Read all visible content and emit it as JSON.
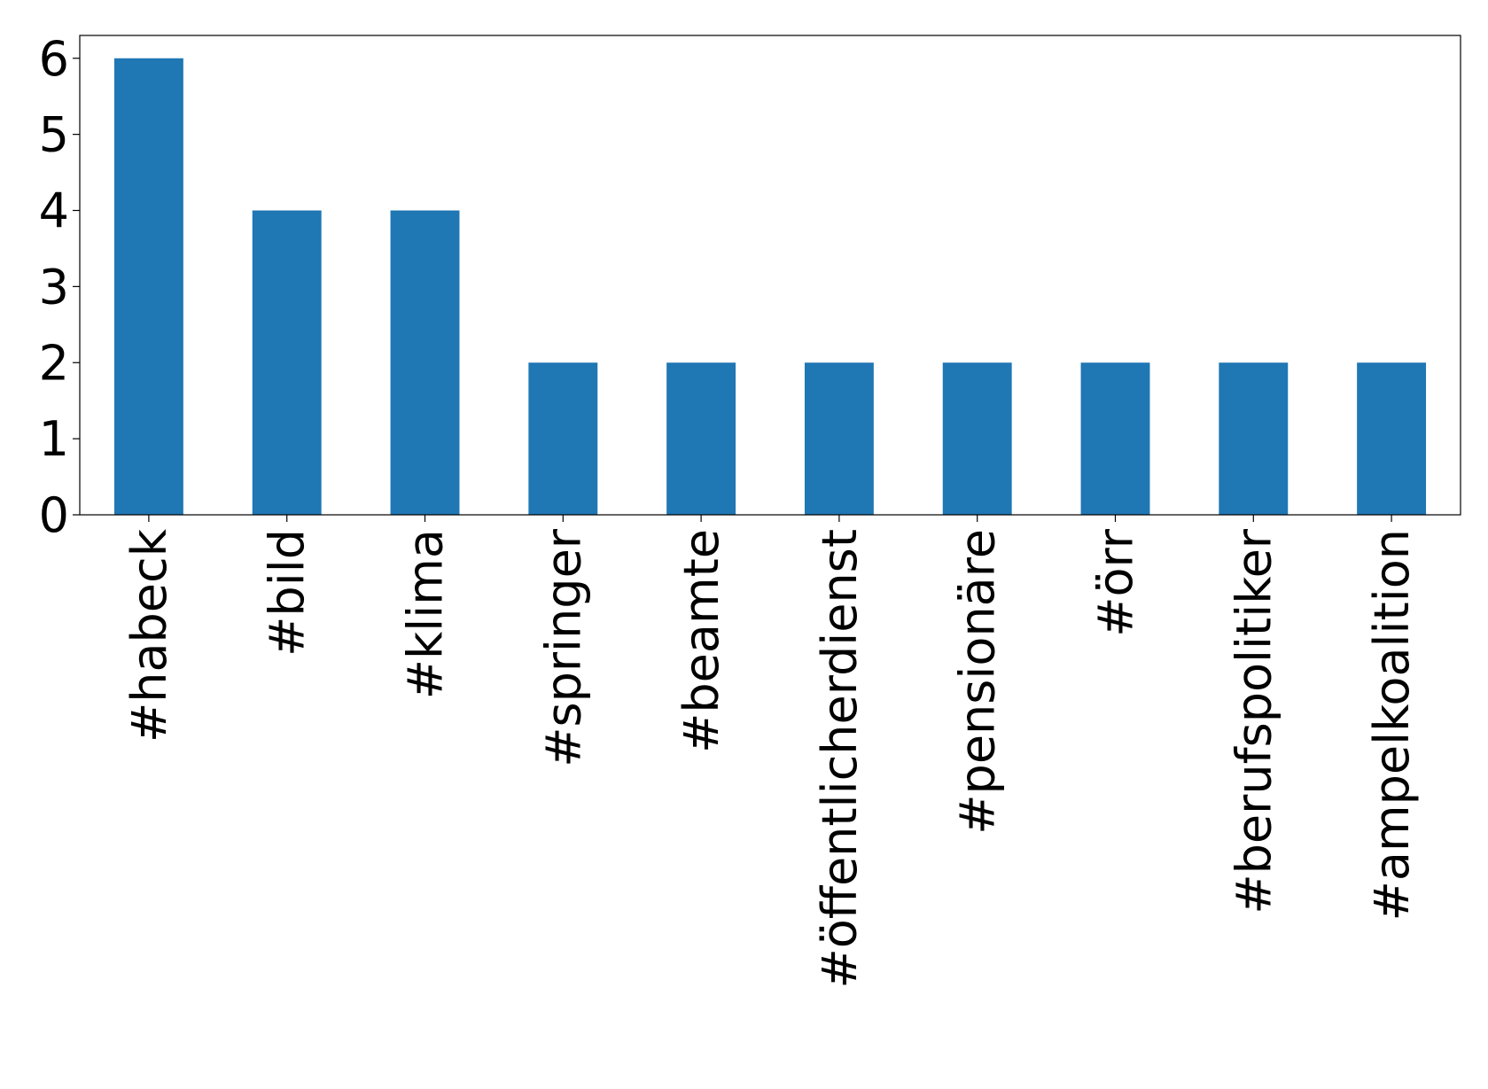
{
  "chart_data": {
    "type": "bar",
    "categories": [
      "#habeck",
      "#bild",
      "#klima",
      "#springer",
      "#beamte",
      "#öffentlicherdienst",
      "#pensionäre",
      "#örr",
      "#berufspolitiker",
      "#ampelkoalition"
    ],
    "values": [
      6,
      4,
      4,
      2,
      2,
      2,
      2,
      2,
      2,
      2
    ],
    "color": "#1f77b4",
    "ylim": [
      0,
      6.3
    ],
    "yticks": [
      0,
      1,
      2,
      3,
      4,
      5,
      6
    ],
    "grid": false
  }
}
